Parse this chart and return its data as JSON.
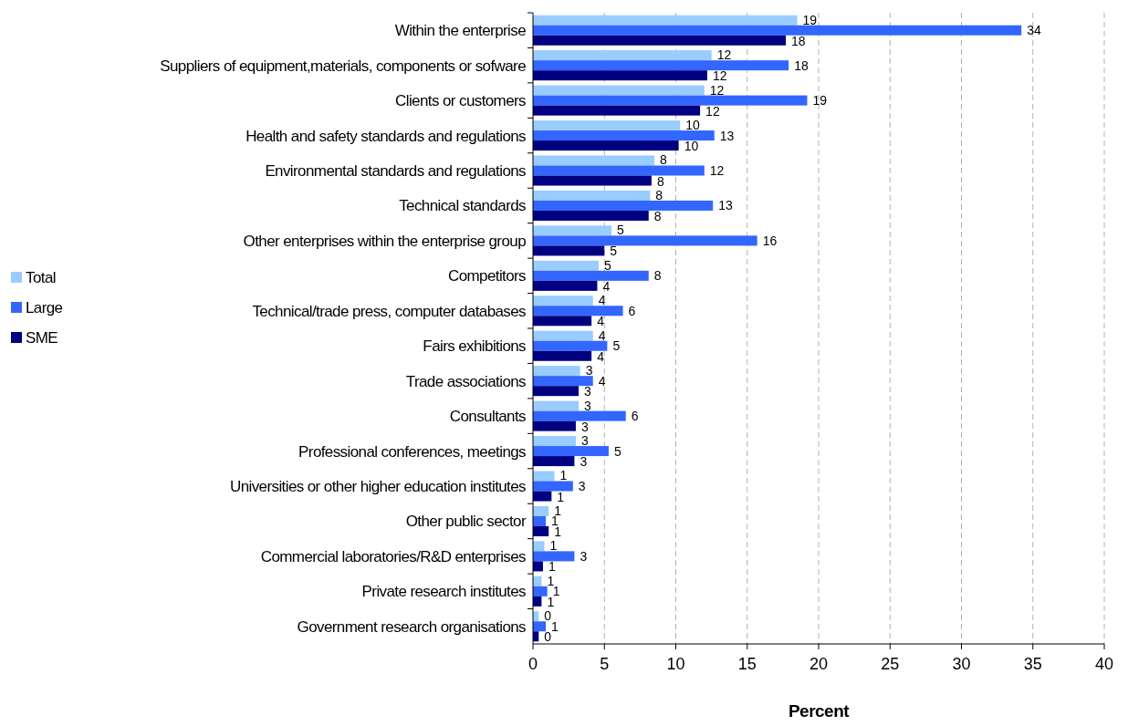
{
  "chart_data": {
    "type": "bar",
    "orientation": "horizontal",
    "xlabel": "Percent",
    "categories": [
      "Within the enterprise",
      "Suppliers of equipment,materials, components or sofware",
      "Clients or customers",
      "Health and safety standards and regulations",
      "Environmental standards and regulations",
      "Technical standards",
      "Other enterprises within the enterprise group",
      "Competitors",
      "Technical/trade press, computer databases",
      "Fairs exhibitions",
      "Trade associations",
      "Consultants",
      "Professional conferences, meetings",
      "Universities or other higher education institutes",
      "Other public sector",
      "Commercial laboratories/R&D enterprises",
      "Private research institutes",
      "Government research organisations"
    ],
    "series": [
      {
        "name": "Total",
        "color": "#99ccff",
        "values": [
          18.5,
          12.5,
          12.0,
          10.3,
          8.5,
          8.2,
          5.5,
          4.6,
          4.2,
          4.2,
          3.3,
          3.2,
          3.0,
          1.5,
          1.1,
          0.8,
          0.6,
          0.4
        ],
        "value_labels": [
          "19",
          "12",
          "12",
          "10",
          "8",
          "8",
          "5",
          "5",
          "4",
          "4",
          "3",
          "3",
          "3",
          "1",
          "1",
          "1",
          "1",
          "0"
        ]
      },
      {
        "name": "Large",
        "color": "#3366ff",
        "values": [
          34.2,
          17.9,
          19.2,
          12.7,
          12.0,
          12.6,
          15.7,
          8.1,
          6.3,
          5.2,
          4.2,
          6.5,
          5.3,
          2.8,
          0.9,
          2.9,
          1.0,
          0.9
        ],
        "value_labels": [
          "34",
          "18",
          "19",
          "13",
          "12",
          "13",
          "16",
          "8",
          "6",
          "5",
          "4",
          "6",
          "5",
          "3",
          "1",
          "3",
          "1",
          "1"
        ]
      },
      {
        "name": "SME",
        "color": "#000080",
        "values": [
          17.7,
          12.2,
          11.7,
          10.2,
          8.3,
          8.1,
          5.0,
          4.5,
          4.1,
          4.1,
          3.2,
          3.0,
          2.9,
          1.3,
          1.1,
          0.7,
          0.6,
          0.4
        ],
        "value_labels": [
          "18",
          "12",
          "12",
          "10",
          "8",
          "8",
          "5",
          "4",
          "4",
          "4",
          "3",
          "3",
          "3",
          "1",
          "1",
          "1",
          "1",
          "0"
        ]
      }
    ],
    "xlim": [
      0,
      40
    ],
    "xticks": [
      0,
      5,
      10,
      15,
      20,
      25,
      30,
      35,
      40
    ],
    "grid": "x",
    "legend": "left"
  }
}
